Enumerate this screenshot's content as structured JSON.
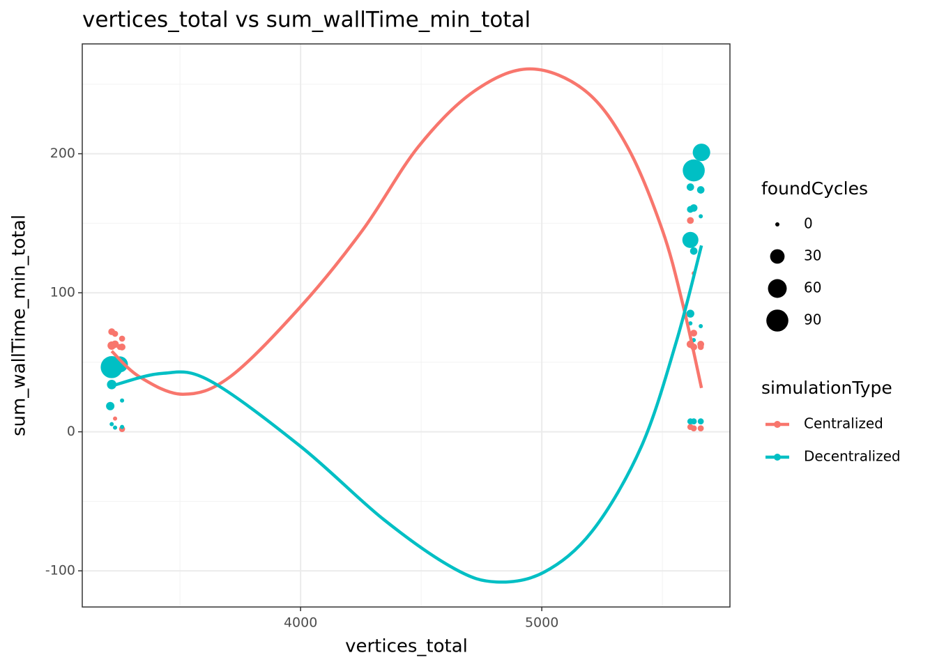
{
  "chart_data": {
    "type": "scatter",
    "title": "vertices_total  vs  sum_wallTime_min_total",
    "x_label": "vertices_total",
    "y_label": "sum_wallTime_min_total",
    "xlim": [
      3095,
      5780
    ],
    "ylim": [
      -126,
      279
    ],
    "xticks": [
      4000,
      5000
    ],
    "yticks": [
      -100,
      0,
      100,
      200
    ],
    "x_minor_grid": [
      3500,
      4500,
      5500
    ],
    "y_minor_grid": [
      -50,
      50,
      150,
      250
    ],
    "grid": true,
    "size_legend_title": "foundCycles",
    "size_legend": [
      0,
      30,
      60,
      90
    ],
    "color_legend_title": "simulationType",
    "series": [
      {
        "name": "Centralized",
        "color": "#F8766D",
        "x": [
          3217,
          3231,
          3260,
          3217,
          3231,
          3260,
          3231,
          3260,
          3251,
          5616,
          5630,
          5630,
          5616,
          5630,
          5659,
          5659,
          5616,
          5659,
          5630
        ],
        "values": [
          72,
          70.5,
          67,
          62,
          63,
          61,
          9.5,
          2,
          61,
          152,
          114,
          71,
          63,
          61,
          63,
          61,
          3.5,
          2.5,
          2.5
        ],
        "sizes": [
          2,
          1,
          1,
          5,
          3,
          2,
          0,
          1,
          1,
          2,
          0,
          2,
          3,
          2,
          2,
          1,
          1,
          1,
          1
        ],
        "fit_x": [
          3217,
          3332,
          3512,
          3708,
          4000,
          4257,
          4488,
          4720,
          4951,
          5182,
          5355,
          5500,
          5587,
          5662
        ],
        "fit_values": [
          58,
          39.6,
          27,
          39.6,
          90,
          145,
          205,
          245,
          261,
          245,
          205,
          145,
          90,
          31.5
        ]
      },
      {
        "name": "Decentralized",
        "color": "#00BFC4",
        "x": [
          3217,
          3251,
          3217,
          3211,
          3260,
          3217,
          3231,
          3260,
          5662,
          5630,
          5616,
          5659,
          5630,
          5616,
          5659,
          5616,
          5630,
          5616,
          5616,
          5659,
          5630,
          5616,
          5659,
          5630
        ],
        "values": [
          46.5,
          48.5,
          34,
          18.5,
          22.5,
          5.5,
          3,
          3.5,
          201,
          188,
          176,
          174,
          161,
          160,
          155,
          138,
          130,
          85,
          78,
          76,
          66,
          7.5,
          7.5,
          7.5
        ],
        "sizes": [
          90,
          40,
          8,
          5,
          0,
          0,
          0,
          0,
          50,
          90,
          3,
          3,
          3,
          2,
          0,
          40,
          3,
          4,
          0,
          0,
          0,
          1,
          1,
          1
        ],
        "fit_x": [
          3217,
          3425,
          3621,
          4000,
          4344,
          4633,
          4812,
          5009,
          5211,
          5413,
          5558,
          5662
        ],
        "fit_values": [
          33,
          42,
          37,
          -10.5,
          -63,
          -98,
          -108,
          -101,
          -71,
          -10.5,
          65,
          134
        ]
      }
    ]
  }
}
